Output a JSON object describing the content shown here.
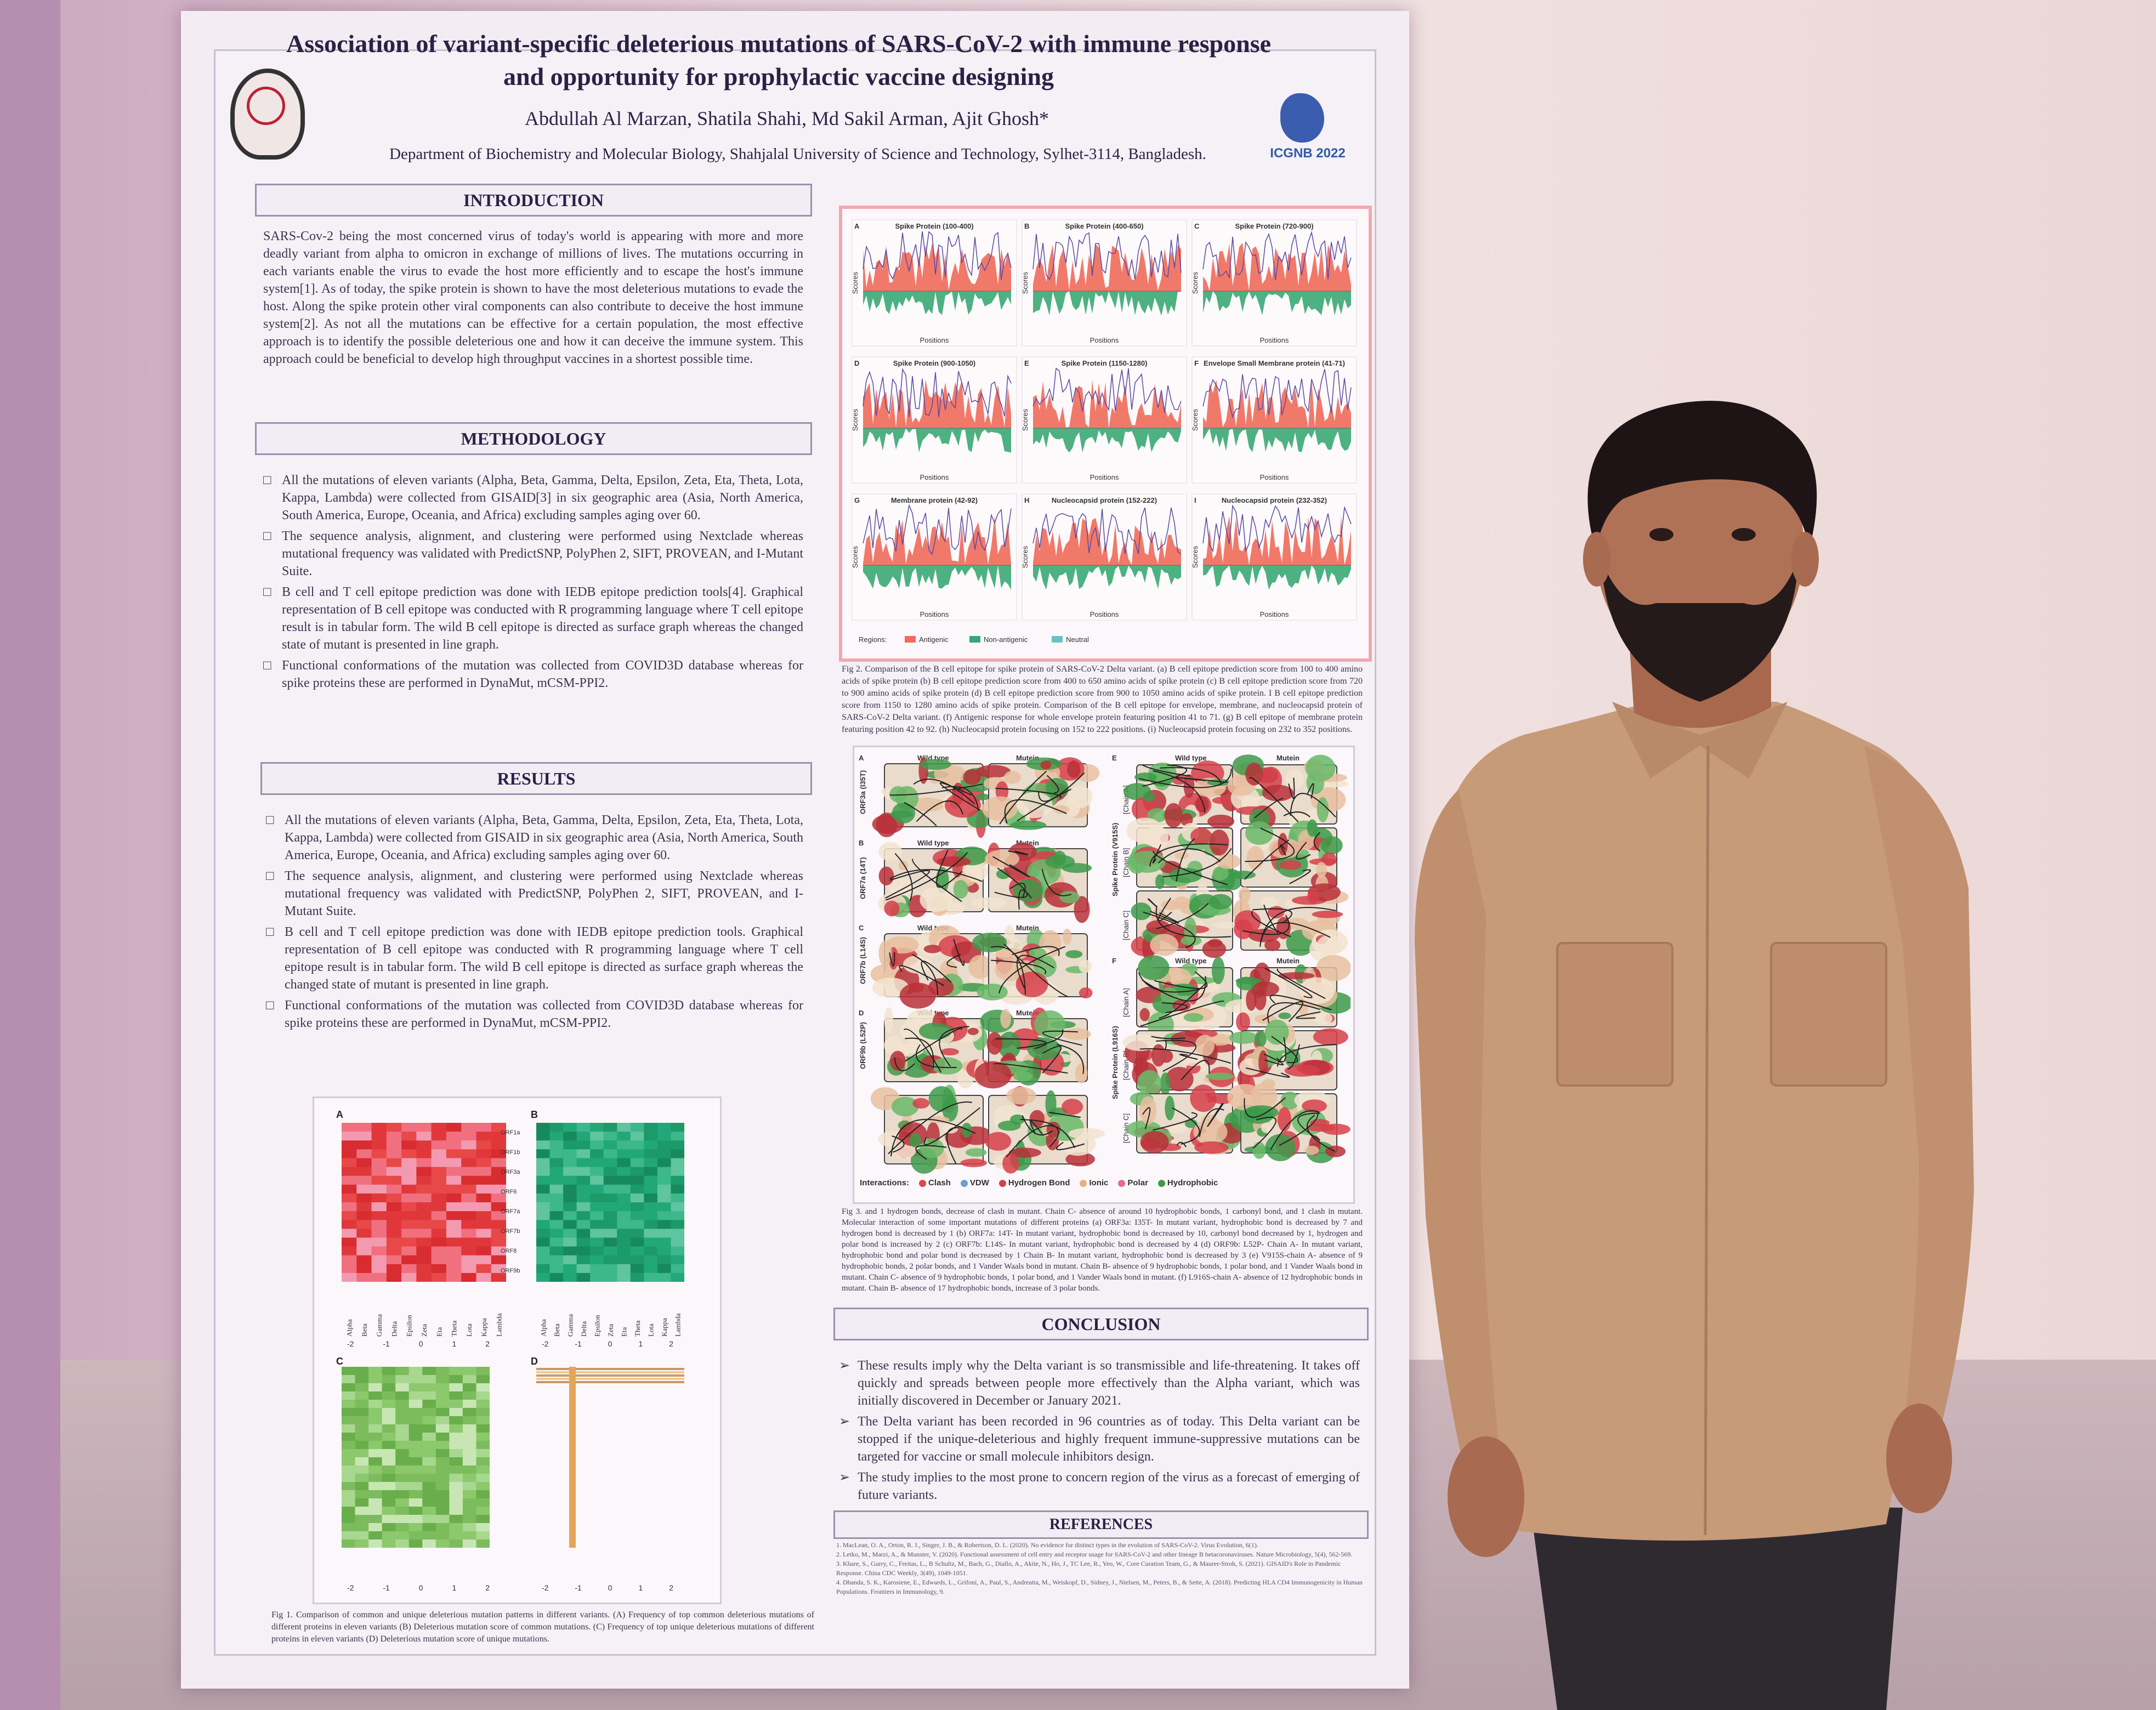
{
  "poster": {
    "title": "Association of variant-specific deleterious mutations of SARS-CoV-2 with immune response and opportunity for prophylactic vaccine designing",
    "authors": "Abdullah Al Marzan, Shatila Shahi, Md Sakil Arman, Ajit Ghosh*",
    "affiliation": "Department of Biochemistry and Molecular Biology, Shahjalal University of Science and Technology, Sylhet-3114, Bangladesh.",
    "logo_right_text": "ICGNB 2022",
    "introduction": {
      "heading": "INTRODUCTION",
      "text": "SARS-Cov-2 being the most concerned virus of today's world is appearing with more and more deadly variant from alpha to omicron in exchange of millions of lives. The mutations occurring in each variants enable the virus to evade the host more efficiently and to escape the host's immune system[1]. As of today, the spike protein is shown to have the most deleterious mutations to evade the host. Along the spike protein other viral components can also contribute to deceive the host immune system[2]. As not all the mutations can be effective for a certain population, the most effective approach is to identify the possible deleterious one and how it can deceive the immune system. This approach could be beneficial to develop high throughput vaccines in a shortest possible time."
    },
    "methodology": {
      "heading": "METHODOLOGY",
      "items": [
        "All the mutations of eleven variants (Alpha, Beta, Gamma, Delta, Epsilon, Zeta, Eta, Theta, Lota, Kappa, Lambda) were collected from GISAID[3] in six geographic area (Asia, North America, South America, Europe, Oceania, and Africa) excluding samples aging over 60.",
        "The sequence analysis, alignment, and clustering were performed using Nextclade whereas mutational frequency was validated with PredictSNP, PolyPhen 2, SIFT, PROVEAN, and I-Mutant Suite.",
        "B cell and T cell epitope prediction was done with IEDB epitope prediction tools[4]. Graphical representation of B cell epitope was conducted with R programming language where T cell epitope result is in tabular form. The wild B cell epitope is directed as surface graph whereas the changed state of mutant is presented in line graph.",
        "Functional conformations of the mutation was collected from COVID3D database whereas for spike proteins these are performed in DynaMut, mCSM-PPI2."
      ]
    },
    "results": {
      "heading": "RESULTS",
      "items": [
        "All the mutations of eleven variants (Alpha, Beta, Gamma, Delta, Epsilon, Zeta, Eta, Theta, Lota, Kappa, Lambda) were collected from GISAID in six geographic area (Asia, North America, South America, Europe, Oceania, and Africa) excluding samples aging over 60.",
        "The sequence analysis, alignment, and clustering were performed using Nextclade whereas mutational frequency was validated with PredictSNP, PolyPhen 2, SIFT, PROVEAN, and I-Mutant Suite.",
        "B cell and T cell epitope prediction was done with IEDB epitope prediction tools. Graphical representation of B cell epitope was conducted with R programming language where T cell epitope result is in tabular form. The wild B cell epitope is directed as surface graph whereas the changed state of mutant is presented in line graph.",
        "Functional conformations of the mutation was collected from COVID3D database whereas for spike proteins these are performed in DynaMut, mCSM-PPI2."
      ]
    },
    "fig1": {
      "panels": [
        "A",
        "B",
        "C",
        "D"
      ],
      "row_labels": [
        "ORF1a",
        "ORF1b",
        "ORF3a",
        "ORF6",
        "ORF7a",
        "ORF7b",
        "ORF8",
        "ORF9b"
      ],
      "variants": [
        "Alpha",
        "Beta",
        "Gamma",
        "Delta",
        "Epsilon",
        "Zeta",
        "Eta",
        "Theta",
        "Lota",
        "Kappa",
        "Lambda"
      ],
      "scale": [
        "-2",
        "-1",
        "0",
        "1",
        "2"
      ],
      "caption": "Fig 1. Comparison of common and unique deleterious mutation patterns in different variants. (A) Frequency of top common deleterious mutations of different proteins in eleven variants (B) Deleterious mutation score of common mutations. (C) Frequency of top unique deleterious mutations of different proteins in eleven variants (D) Deleterious mutation score of unique mutations."
    },
    "fig3": {
      "panels": [
        {
          "label": "A",
          "title": "Spike Protein (100-400)"
        },
        {
          "label": "B",
          "title": "Spike Protein (400-650)"
        },
        {
          "label": "C",
          "title": "Spike Protein (720-900)"
        },
        {
          "label": "D",
          "title": "Spike Protein (900-1050)"
        },
        {
          "label": "E",
          "title": "Spike Protein (1150-1280)"
        },
        {
          "label": "F",
          "title": "Envelope Small Membrane protein (41-71)"
        },
        {
          "label": "G",
          "title": "Membrane protein (42-92)"
        },
        {
          "label": "H",
          "title": "Nucleocapsid protein (152-222)"
        },
        {
          "label": "I",
          "title": "Nucleocapsid protein (232-352)"
        }
      ],
      "x_label": "Positions",
      "y_label": "Scores",
      "legend": [
        "Regions:",
        "Antigenic",
        "Non-antigenic",
        "Neutral"
      ],
      "caption": "Fig 2. Comparison of the B cell epitope for spike protein of SARS-CoV-2 Delta variant. (a) B cell epitope prediction score from 100 to 400 amino acids of spike protein (b) B cell epitope prediction score from 400 to 650 amino acids of spike protein (c) B cell epitope prediction score from 720 to 900 amino acids of spike protein (d) B cell epitope prediction score from 900 to 1050 amino acids of spike protein. I B cell epitope prediction score from 1150 to 1280 amino acids of spike protein. Comparison of the B cell epitope for envelope, membrane, and nucleocapsid protein of SARS-CoV-2 Delta variant. (f) Antigenic response for whole envelope protein featuring position 41 to 71. (g) B cell epitope of membrane protein featuring position 42 to 92. (h) Nucleocapsid protein focusing on 152 to 222 positions. (i) Nucleocapsid protein focusing on 232 to 352 positions."
    },
    "fig_struct": {
      "col_headers": [
        "Wild type",
        "Mutein"
      ],
      "left_panels": [
        {
          "label": "A",
          "side": "ORF3a (I35T)"
        },
        {
          "label": "B",
          "side": "ORF7a (14T)"
        },
        {
          "label": "C",
          "side": "ORF7b (L14S)"
        },
        {
          "label": "D",
          "side": "ORF9b (L52P)"
        }
      ],
      "right_panels": [
        {
          "label": "E",
          "side": "Spike Protein (V915S)"
        },
        {
          "label": "F",
          "side": "Spike Protein (L916S)"
        }
      ],
      "chain_labels": [
        "[Chain A]",
        "[Chain B]",
        "[Chain C]"
      ],
      "interactions_label": "Interactions:",
      "interactions": [
        {
          "name": "Clash",
          "color": "#d84a4a"
        },
        {
          "name": "VDW",
          "color": "#6aa0d8"
        },
        {
          "name": "Hydrogen Bond",
          "color": "#d6404a"
        },
        {
          "name": "Ionic",
          "color": "#e8b07a"
        },
        {
          "name": "Polar",
          "color": "#e86a8a"
        },
        {
          "name": "Hydrophobic",
          "color": "#3d9a4a"
        }
      ],
      "caption": "Fig 3. and 1 hydrogen bonds, decrease of clash in mutant. Chain C- absence of around 10 hydrophobic bonds, 1 carbonyl bond, and 1 clash in mutant. Molecular interaction of some important mutations of different proteins (a) ORF3a: I35T- In mutant variant, hydrophobic bond is decreased by 7 and hydrogen bond is decreased by 1 (b) ORF7a: 14T- In mutant variant, hydrophobic bond is decreased by 10, carbonyl bond decreased by 1, hydrogen and polar bond is increased by 2 (c) ORF7b: L14S- In mutant variant, hydrophobic bond is decreased by 4 (d) ORF9b: L52P- Chain A- In mutant variant, hydrophobic bond and polar bond is decreased by 1 Chain B- In mutant variant, hydrophobic bond is decreased by 3 (e) V915S-chain A- absence of 9 hydrophobic bonds, 2 polar bonds, and 1 Vander Waals bond in mutant. Chain B- absence of 9 hydrophobic bonds, 1 polar bond, and 1 Vander Waals bond in mutant. Chain C- absence of 9 hydrophobic bonds, 1 polar bond, and 1 Vander Waals bond in mutant. (f) L916S-chain A- absence of 12 hydrophobic bonds in mutant. Chain B- absence of 17 hydrophobic bonds, increase of 3 polar bonds."
    },
    "conclusion": {
      "heading": "CONCLUSION",
      "items": [
        "These results imply why the Delta variant is so transmissible and life-threatening. It takes off quickly and spreads between people more effectively than the Alpha variant, which was initially discovered in December or January 2021.",
        "The Delta variant has been recorded in 96 countries as of today. This Delta variant can be stopped if the unique-deleterious and highly frequent immune-suppressive mutations can be targeted for vaccine or small molecule inhibitors design.",
        "The study implies to the most prone to concern region of the virus as a forecast of emerging of future variants."
      ]
    },
    "references": {
      "heading": "REFERENCES",
      "items": [
        "1. MacLean, O. A., Orton, R. J., Singer, J. B., & Robertson, D. L. (2020). No evidence for distinct types in the evolution of SARS-CoV-2. Virus Evolution, 6(1).",
        "2. Letko, M., Marzi, A., & Munster, V. (2020). Functional assessment of cell entry and receptor usage for SARS-CoV-2 and other lineage B betacoronaviruses. Nature Microbiology, 5(4), 562-569.",
        "3. Khare, S., Gurry, C., Freitas, L., B Schultz, M., Bach, G., Diallo, A., Akite, N., Ho, J., TC Lee, R., Yeo, W., Core Curation Team, G., & Maurer-Stroh, S. (2021). GISAID's Role in Pandemic Response. China CDC Weekly, 3(49), 1049-1051.",
        "4. Dhanda, S. K., Karosiene, E., Edwards, L., Grifoni, A., Paul, S., Andreatta, M., Weiskopf, D., Sidney, J., Nielsen, M., Peters, B., & Sette, A. (2018). Predicting HLA CD4 Immunogenicity in Human Populations. Frontiers in Immunology, 9."
      ]
    }
  },
  "colors": {
    "heat_red": "#e0383a",
    "heat_green": "#1c9a6a",
    "heat_lightgreen": "#7cbc5c",
    "heat_orange": "#e3a55a",
    "antigenic": "#f06a5a",
    "non_antigenic": "#3aa874",
    "neutral": "#66c4c0",
    "shirt": "#c79a78",
    "hair": "#1e1416"
  }
}
